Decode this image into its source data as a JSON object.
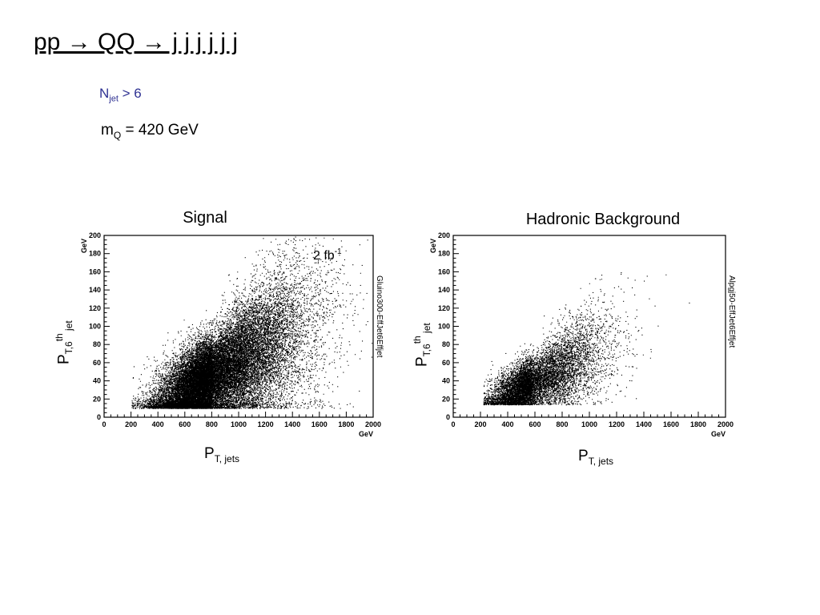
{
  "slide": {
    "title": "pp → QQ → j j j j j j",
    "cut": {
      "symbol": "N",
      "sub": "jet",
      "rest": " > 6"
    },
    "mass": {
      "symbol": "m",
      "sub": "Q",
      "rest": " = 420 GeV"
    }
  },
  "chart_data": [
    {
      "type": "scatter",
      "title": "Signal",
      "xlabel": {
        "symbol": "P",
        "sub": "T, jets"
      },
      "ylabel": {
        "symbol": "P",
        "sub": "T,6",
        "sup": "th",
        "sub2": " jet"
      },
      "xunit": "GeV",
      "yunit": "GeV",
      "xlim": [
        0,
        2000
      ],
      "ylim": [
        0,
        200
      ],
      "xticks": [
        0,
        200,
        400,
        600,
        800,
        1000,
        1200,
        1400,
        1600,
        1800,
        2000
      ],
      "yticks": [
        0,
        20,
        40,
        60,
        80,
        100,
        120,
        140,
        160,
        180,
        200
      ],
      "side_label": "Gluino300-EffJet6Effjet",
      "annotation": {
        "text": "2 fb",
        "sup": "-1"
      },
      "distribution": {
        "n_points": 26000,
        "x_peak": 800,
        "x_spread": 260,
        "x_min": 200,
        "y_peak": 45,
        "y_spread": 22,
        "correlation": 0.62,
        "y_min": 10
      }
    },
    {
      "type": "scatter",
      "title": "Hadronic Background",
      "xlabel": {
        "symbol": "P",
        "sub": "T, jets"
      },
      "ylabel": {
        "symbol": "P",
        "sub": "T,6",
        "sup": "th",
        "sub2": " jet"
      },
      "xunit": "GeV",
      "yunit": "GeV",
      "xlim": [
        0,
        2000
      ],
      "ylim": [
        0,
        200
      ],
      "xticks": [
        0,
        200,
        400,
        600,
        800,
        1000,
        1200,
        1400,
        1600,
        1800,
        2000
      ],
      "yticks": [
        0,
        20,
        40,
        60,
        80,
        100,
        120,
        140,
        160,
        180,
        200
      ],
      "side_label": "Alpgj50-EffJet6Effjet",
      "distribution": {
        "n_points": 9000,
        "x_peak": 580,
        "x_spread": 200,
        "x_min": 220,
        "y_peak": 38,
        "y_spread": 14,
        "correlation": 0.65,
        "y_min": 14
      }
    }
  ]
}
